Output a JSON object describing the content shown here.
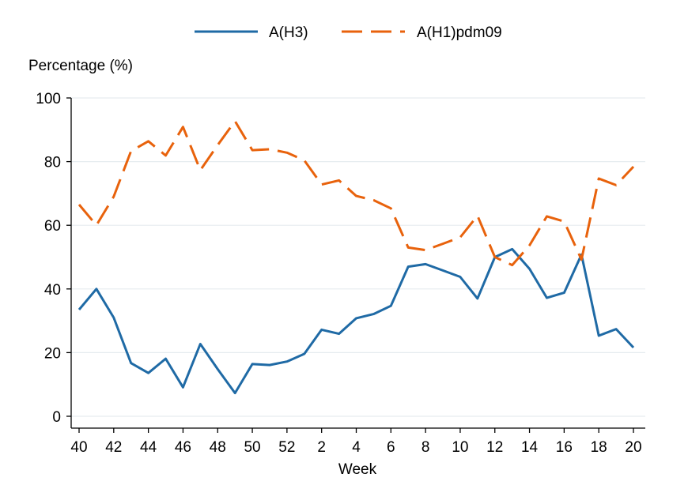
{
  "chart_data": {
    "type": "line",
    "title": "",
    "xlabel": "Week",
    "ylabel": "Percentage (%)",
    "ylim": [
      0,
      100
    ],
    "yticks": [
      0,
      20,
      40,
      60,
      80,
      100
    ],
    "x": [
      "40",
      "41",
      "42",
      "43",
      "44",
      "45",
      "46",
      "47",
      "48",
      "49",
      "50",
      "51",
      "52",
      "1",
      "2",
      "3",
      "4",
      "5",
      "6",
      "7",
      "8",
      "9",
      "10",
      "11",
      "12",
      "13",
      "14",
      "15",
      "16",
      "17",
      "18",
      "19",
      "20"
    ],
    "xtick_labels": [
      "40",
      "42",
      "44",
      "46",
      "48",
      "50",
      "52",
      "2",
      "4",
      "6",
      "8",
      "10",
      "12",
      "14",
      "16",
      "18",
      "20"
    ],
    "grid": "horizontal",
    "legend_position": "top",
    "series": [
      {
        "name": "A(H3)",
        "color": "#1f6aa5",
        "style": "solid",
        "values": [
          33.5,
          40,
          31,
          16.7,
          13.6,
          18.1,
          9.1,
          22.7,
          14.8,
          7.3,
          16.4,
          16.1,
          17.2,
          19.6,
          27.2,
          25.9,
          30.8,
          32.1,
          34.7,
          47,
          47.8,
          45.8,
          43.8,
          37,
          50,
          52.5,
          46.3,
          37.2,
          38.8,
          50.8,
          25.3,
          27.4,
          21.6
        ]
      },
      {
        "name": "A(H1)pdm09",
        "color": "#e8620c",
        "style": "dashed",
        "values": [
          66.5,
          60,
          69,
          83.3,
          86.4,
          81.9,
          90.9,
          77.3,
          85.2,
          92.7,
          83.6,
          83.9,
          82.8,
          80.4,
          72.8,
          74.1,
          69.2,
          67.9,
          65.3,
          53,
          52.2,
          54.2,
          56.2,
          63,
          50,
          47.5,
          53.7,
          62.8,
          61.2,
          49.2,
          74.7,
          72.6,
          78.4
        ]
      }
    ]
  }
}
